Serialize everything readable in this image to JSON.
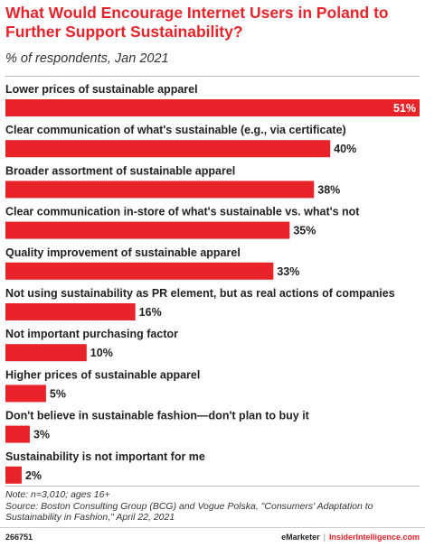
{
  "header": {
    "title": "What Would Encourage Internet Users in Poland to Further Support Sustainability?",
    "subtitle": "% of respondents, Jan 2021"
  },
  "chart_data": {
    "type": "bar",
    "orientation": "horizontal",
    "title": "What Would Encourage Internet Users in Poland to Further Support Sustainability?",
    "subtitle": "% of respondents, Jan 2021",
    "categories": [
      "Lower prices of sustainable apparel",
      "Clear communication of what's sustainable (e.g., via certificate)",
      "Broader assortment of sustainable apparel",
      "Clear communication in-store of what's sustainable vs. what's not",
      "Quality improvement of sustainable apparel",
      "Not using sustainability as PR element, but as real actions of companies",
      "Not important purchasing factor",
      "Higher prices of sustainable apparel",
      "Don't believe in sustainable fashion—don't plan to buy it",
      "Sustainability is not important for me"
    ],
    "values": [
      51,
      40,
      38,
      35,
      33,
      16,
      10,
      5,
      3,
      2
    ],
    "value_labels": [
      "51%",
      "40%",
      "38%",
      "35%",
      "33%",
      "16%",
      "10%",
      "5%",
      "3%",
      "2%"
    ],
    "xlim": [
      0,
      51
    ],
    "bar_color": "#e8232a",
    "grid": false
  },
  "notes": {
    "note": "Note: n=3,010; ages 16+",
    "source": "Source: Boston Consulting Group (BCG) and Vogue Polska, \"Consumers' Adaptation to Sustainability in Fashion,\" April 22, 2021"
  },
  "footer": {
    "chart_id": "266751",
    "brand_left": "eMarketer",
    "separator": "|",
    "brand_right": "InsiderIntelligence.com"
  }
}
